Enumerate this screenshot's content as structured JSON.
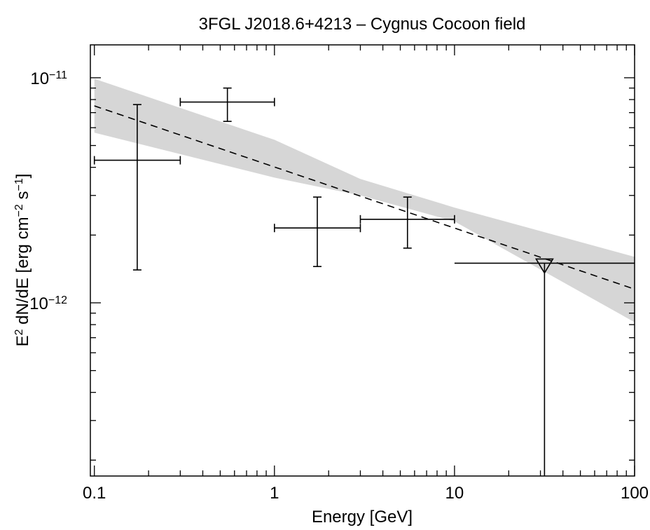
{
  "chart_data": {
    "type": "scatter",
    "title": "3FGL J2018.6+4213 – Cygnus Cocoon field",
    "xlabel": "Energy [GeV]",
    "ylabel": "E2 dN/dE [erg cm-2 s-1]",
    "ylabel_parts": {
      "a": "E",
      "a_sup": "2",
      "b": " dN/dE [erg cm",
      "b_sup": "−2",
      "c": " s",
      "c_sup": "−1",
      "d": "]"
    },
    "x_scale": "log",
    "y_scale": "log",
    "xlim": [
      0.095,
      100
    ],
    "ylim": [
      1.7e-13,
      1.4e-11
    ],
    "x_ticks": [
      {
        "value": 0.1,
        "label": "0.1"
      },
      {
        "value": 1,
        "label": "1"
      },
      {
        "value": 10,
        "label": "10"
      },
      {
        "value": 100,
        "label": "100"
      }
    ],
    "y_ticks": [
      {
        "value": 1e-12,
        "mantissa": "10",
        "exponent": "−12"
      },
      {
        "value": 1e-11,
        "mantissa": "10",
        "exponent": "−11"
      }
    ],
    "grid": false,
    "points": [
      {
        "x": 0.173,
        "x_low": 0.1,
        "x_high": 0.3,
        "y": 4.3e-12,
        "y_low": 1.4e-12,
        "y_high": 7.6e-12
      },
      {
        "x": 0.548,
        "x_low": 0.3,
        "x_high": 1.0,
        "y": 7.8e-12,
        "y_low": 6.4e-12,
        "y_high": 9e-12
      },
      {
        "x": 1.73,
        "x_low": 1.0,
        "x_high": 3.0,
        "y": 2.15e-12,
        "y_low": 1.45e-12,
        "y_high": 2.95e-12
      },
      {
        "x": 5.48,
        "x_low": 3.0,
        "x_high": 10.0,
        "y": 2.35e-12,
        "y_low": 1.75e-12,
        "y_high": 2.95e-12
      }
    ],
    "upper_limits": [
      {
        "x": 31.6,
        "x_low": 10.0,
        "x_high": 100.0,
        "y": 1.5e-12
      }
    ],
    "model": {
      "line_style": "dashed",
      "line": [
        {
          "x": 0.1,
          "y": 7.5e-12
        },
        {
          "x": 100,
          "y": 1.15e-12
        }
      ],
      "band_upper": [
        {
          "x": 0.1,
          "y": 9.9e-12
        },
        {
          "x": 1,
          "y": 5.3e-12
        },
        {
          "x": 3,
          "y": 3.55e-12
        },
        {
          "x": 10,
          "y": 2.65e-12
        },
        {
          "x": 100,
          "y": 1.6e-12
        }
      ],
      "band_lower": [
        {
          "x": 0.1,
          "y": 5.7e-12
        },
        {
          "x": 1,
          "y": 3.6e-12
        },
        {
          "x": 3,
          "y": 3e-12
        },
        {
          "x": 10,
          "y": 2.3e-12
        },
        {
          "x": 100,
          "y": 8.2e-13
        }
      ],
      "band_color": "#d6d6d6"
    },
    "colors": {
      "data": "#000000",
      "band": "#d6d6d6"
    }
  }
}
